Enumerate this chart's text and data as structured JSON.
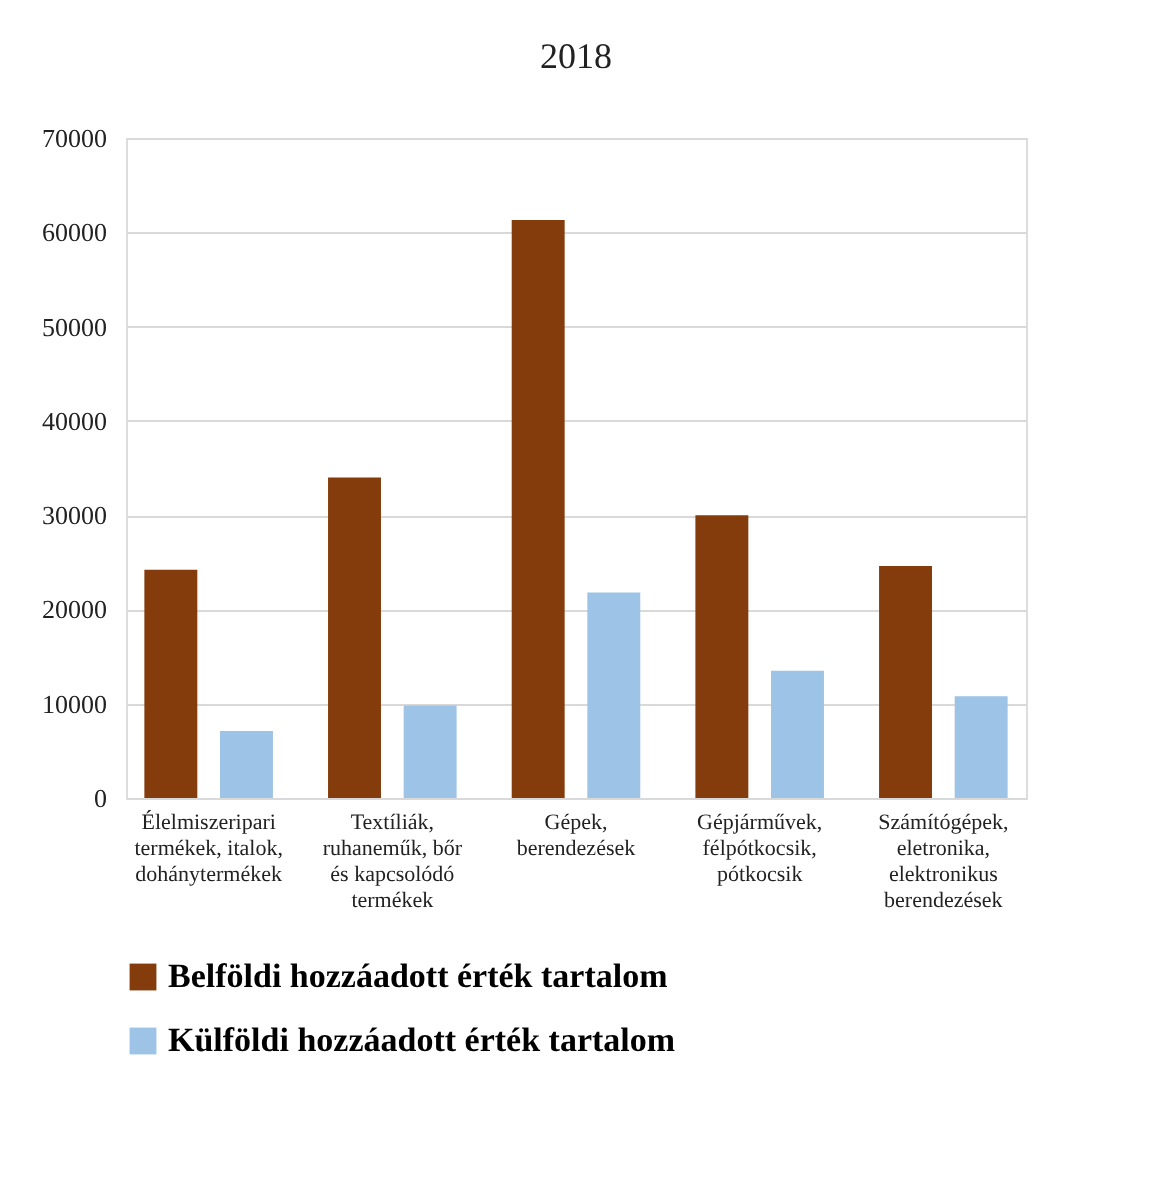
{
  "chart_data": {
    "type": "bar",
    "title": "2018",
    "categories": [
      "Élelmiszeripari\ntermékek, italok,\ndohánytermékek",
      "Textíliák,\nruhaneműk,  bőr\nés kapcsolódó\ntermékek",
      "Gépek,\nberendezések",
      "Gépjárművek,\nfélpótkocsik,\npótkocsik",
      "Számítógépek,\neletronika,\nelektronikus\nberendezések"
    ],
    "series": [
      {
        "name": "Belföldi hozzáadott érték tartalom",
        "color": "#843c0c",
        "values": [
          24200,
          34000,
          61300,
          30000,
          24600
        ]
      },
      {
        "name": "Külföldi hozzáadott érték tartalom",
        "color": "#9dc3e6",
        "values": [
          7100,
          9800,
          21800,
          13500,
          10800
        ]
      }
    ],
    "ylim": [
      0,
      70000
    ],
    "yticks": [
      0,
      10000,
      20000,
      30000,
      40000,
      50000,
      60000,
      70000
    ],
    "grid": "y",
    "legend": "bottom"
  }
}
